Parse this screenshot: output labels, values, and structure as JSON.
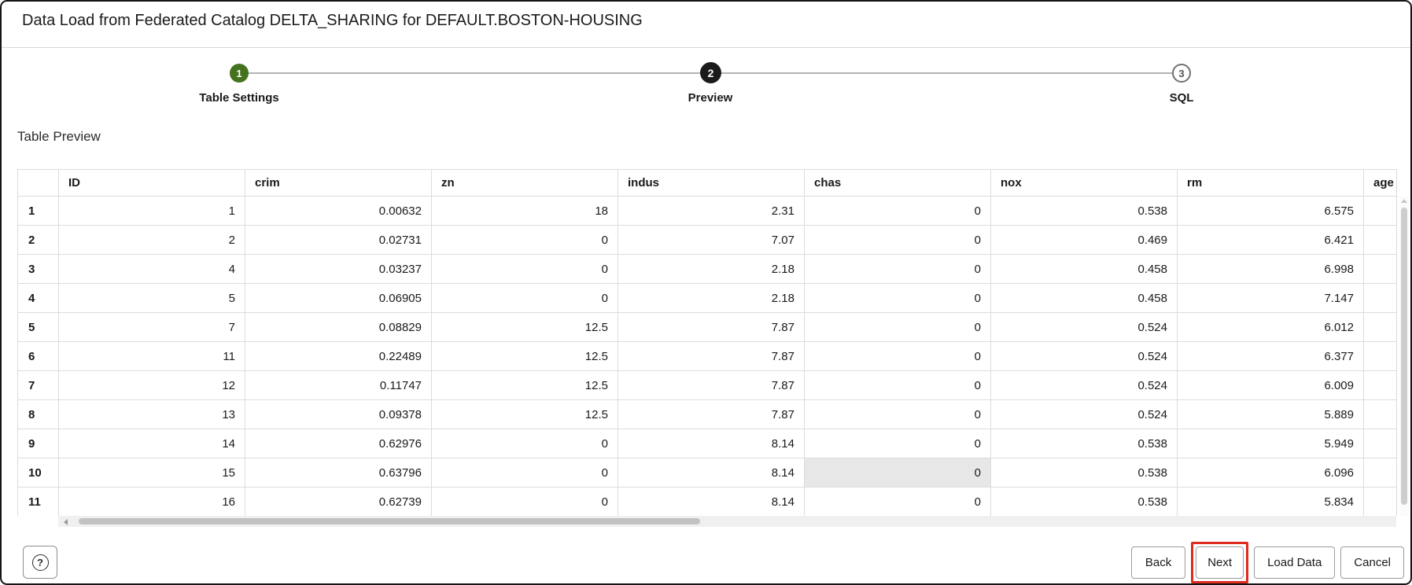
{
  "dialog": {
    "title": "Data Load from Federated Catalog DELTA_SHARING for DEFAULT.BOSTON-HOUSING"
  },
  "stepper": {
    "steps": [
      {
        "number": "1",
        "label": "Table Settings",
        "state": "completed"
      },
      {
        "number": "2",
        "label": "Preview",
        "state": "active"
      },
      {
        "number": "3",
        "label": "SQL",
        "state": "upcoming"
      }
    ]
  },
  "preview": {
    "heading": "Table Preview",
    "columns": [
      "ID",
      "crim",
      "zn",
      "indus",
      "chas",
      "nox",
      "rm",
      "age"
    ],
    "rows": [
      {
        "num": "1",
        "cells": [
          "1",
          "0.00632",
          "18",
          "2.31",
          "0",
          "0.538",
          "6.575",
          ""
        ]
      },
      {
        "num": "2",
        "cells": [
          "2",
          "0.02731",
          "0",
          "7.07",
          "0",
          "0.469",
          "6.421",
          ""
        ]
      },
      {
        "num": "3",
        "cells": [
          "4",
          "0.03237",
          "0",
          "2.18",
          "0",
          "0.458",
          "6.998",
          ""
        ]
      },
      {
        "num": "4",
        "cells": [
          "5",
          "0.06905",
          "0",
          "2.18",
          "0",
          "0.458",
          "7.147",
          ""
        ]
      },
      {
        "num": "5",
        "cells": [
          "7",
          "0.08829",
          "12.5",
          "7.87",
          "0",
          "0.524",
          "6.012",
          ""
        ]
      },
      {
        "num": "6",
        "cells": [
          "11",
          "0.22489",
          "12.5",
          "7.87",
          "0",
          "0.524",
          "6.377",
          ""
        ]
      },
      {
        "num": "7",
        "cells": [
          "12",
          "0.11747",
          "12.5",
          "7.87",
          "0",
          "0.524",
          "6.009",
          ""
        ]
      },
      {
        "num": "8",
        "cells": [
          "13",
          "0.09378",
          "12.5",
          "7.87",
          "0",
          "0.524",
          "5.889",
          ""
        ]
      },
      {
        "num": "9",
        "cells": [
          "14",
          "0.62976",
          "0",
          "8.14",
          "0",
          "0.538",
          "5.949",
          ""
        ]
      },
      {
        "num": "10",
        "cells": [
          "15",
          "0.63796",
          "0",
          "8.14",
          "0",
          "0.538",
          "6.096",
          ""
        ]
      },
      {
        "num": "11",
        "cells": [
          "16",
          "0.62739",
          "0",
          "8.14",
          "0",
          "0.538",
          "5.834",
          ""
        ]
      }
    ],
    "highlighted_cell": {
      "row_num": "10",
      "column": "chas"
    }
  },
  "footer": {
    "help_label": "?",
    "buttons": [
      {
        "label": "Back"
      },
      {
        "label": "Next",
        "highlighted": true
      },
      {
        "label": "Load Data"
      },
      {
        "label": "Cancel"
      }
    ]
  },
  "colors": {
    "step_completed": "#44721f",
    "step_active": "#1b1b1b",
    "annotation_red": "#e02b1f",
    "cell_highlight": "#e7e7e7"
  }
}
